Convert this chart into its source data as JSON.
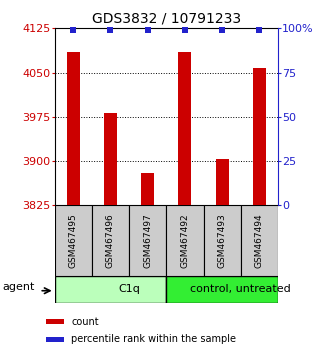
{
  "title": "GDS3832 / 10791233",
  "samples": [
    "GSM467495",
    "GSM467496",
    "GSM467497",
    "GSM467492",
    "GSM467493",
    "GSM467494"
  ],
  "counts": [
    4085,
    3982,
    3880,
    4085,
    3903,
    4058
  ],
  "percentile_ranks": [
    99,
    99,
    99,
    99,
    99,
    99
  ],
  "ylim_left": [
    3825,
    4125
  ],
  "ylim_right": [
    0,
    100
  ],
  "yticks_left": [
    3825,
    3900,
    3975,
    4050,
    4125
  ],
  "yticks_right": [
    0,
    25,
    50,
    75,
    100
  ],
  "ytick_labels_left": [
    "3825",
    "3900",
    "3975",
    "4050",
    "4125"
  ],
  "ytick_labels_right": [
    "0",
    "25",
    "50",
    "75",
    "100%"
  ],
  "bar_color": "#cc0000",
  "dot_color": "#2222cc",
  "groups": [
    {
      "label": "C1q",
      "start": 0,
      "end": 3,
      "color": "#bbffbb"
    },
    {
      "label": "control, untreated",
      "start": 3,
      "end": 6,
      "color": "#33ee33"
    }
  ],
  "agent_label": "agent",
  "legend_items": [
    {
      "label": "count",
      "color": "#cc0000"
    },
    {
      "label": "percentile rank within the sample",
      "color": "#2222cc"
    }
  ],
  "sample_box_color": "#cccccc",
  "title_fontsize": 10,
  "tick_fontsize": 8,
  "sample_fontsize": 6.5,
  "group_fontsize": 8,
  "legend_fontsize": 7,
  "bar_width": 0.35
}
